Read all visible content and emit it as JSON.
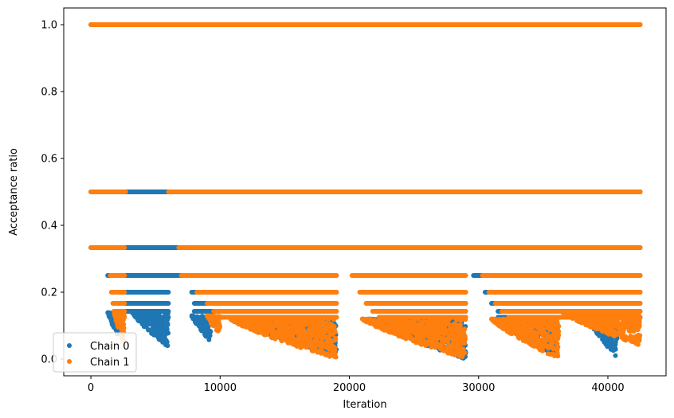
{
  "chart_data": {
    "type": "scatter",
    "xlabel": "Iteration",
    "ylabel": "Acceptance ratio",
    "xlim": [
      -2100,
      44500
    ],
    "ylim": [
      -0.05,
      1.05
    ],
    "x_ticks": [
      0,
      10000,
      20000,
      30000,
      40000
    ],
    "x_tick_labels": [
      "0",
      "10000",
      "20000",
      "30000",
      "40000"
    ],
    "y_ticks": [
      0.0,
      0.2,
      0.4,
      0.6,
      0.8,
      1.0
    ],
    "y_tick_labels": [
      "0.0",
      "0.2",
      "0.4",
      "0.6",
      "0.8",
      "1.0"
    ],
    "grid": false,
    "legend_position": "lower-left",
    "marker": "circle",
    "series": [
      {
        "name": "Chain 0",
        "color": "#1f77b4",
        "bands": [
          {
            "y": 1.0,
            "x_ranges": [
              [
                0,
                42500
              ]
            ]
          },
          {
            "y": 0.5,
            "x_ranges": [
              [
                0,
                42500
              ]
            ]
          },
          {
            "y": 0.3333,
            "x_ranges": [
              [
                0,
                42500
              ]
            ]
          },
          {
            "y": 0.25,
            "x_ranges": [
              [
                1300,
                19000
              ],
              [
                29600,
                42500
              ]
            ]
          },
          {
            "y": 0.2,
            "x_ranges": [
              [
                1600,
                6000
              ],
              [
                7800,
                19000
              ],
              [
                21500,
                29000
              ],
              [
                30500,
                42500
              ]
            ]
          },
          {
            "y": 0.1667,
            "x_ranges": [
              [
                1800,
                6000
              ],
              [
                8000,
                19000
              ],
              [
                22000,
                29000
              ],
              [
                31000,
                42500
              ]
            ]
          },
          {
            "y": 0.1429,
            "x_ranges": [
              [
                1800,
                6000
              ],
              [
                8000,
                19000
              ],
              [
                22000,
                29000
              ],
              [
                31500,
                42500
              ]
            ]
          },
          {
            "y": 0.125,
            "x_ranges": [
              [
                3500,
                6000
              ],
              [
                8500,
                19000
              ],
              [
                22500,
                29000
              ],
              [
                31500,
                42500
              ]
            ]
          }
        ],
        "clusters": [
          {
            "x": [
              1300,
              2400
            ],
            "y_min": 0.05,
            "y_max": 0.14
          },
          {
            "x": [
              3200,
              6000
            ],
            "y_min": 0.035,
            "y_max": 0.14
          },
          {
            "x": [
              7800,
              9300
            ],
            "y_min": 0.05,
            "y_max": 0.13
          },
          {
            "x": [
              11000,
              19000
            ],
            "y_min": 0.01,
            "y_max": 0.12
          },
          {
            "x": [
              21500,
              29000
            ],
            "y_min": 0.0,
            "y_max": 0.12
          },
          {
            "x": [
              31500,
              36000
            ],
            "y_min": 0.005,
            "y_max": 0.12
          },
          {
            "x": [
              38500,
              40700
            ],
            "y_min": 0.005,
            "y_max": 0.12
          }
        ]
      },
      {
        "name": "Chain 1",
        "color": "#ff7f0e",
        "bands": [
          {
            "y": 1.0,
            "x_ranges": [
              [
                0,
                42500
              ]
            ]
          },
          {
            "y": 0.5,
            "x_ranges": [
              [
                0,
                2700
              ],
              [
                6000,
                42500
              ]
            ]
          },
          {
            "y": 0.3333,
            "x_ranges": [
              [
                0,
                2600
              ],
              [
                6800,
                42500
              ]
            ]
          },
          {
            "y": 0.25,
            "x_ranges": [
              [
                1500,
                2600
              ],
              [
                7000,
                19000
              ],
              [
                20200,
                29000
              ],
              [
                30300,
                42500
              ]
            ]
          },
          {
            "y": 0.2,
            "x_ranges": [
              [
                1600,
                2600
              ],
              [
                8200,
                19000
              ],
              [
                20800,
                29000
              ],
              [
                30800,
                42500
              ]
            ]
          },
          {
            "y": 0.1667,
            "x_ranges": [
              [
                1700,
                2600
              ],
              [
                9000,
                19000
              ],
              [
                21300,
                29000
              ],
              [
                31300,
                42500
              ]
            ]
          },
          {
            "y": 0.1429,
            "x_ranges": [
              [
                1800,
                2600
              ],
              [
                9500,
                19000
              ],
              [
                21800,
                29000
              ],
              [
                31800,
                42500
              ]
            ]
          },
          {
            "y": 0.125,
            "x_ranges": [
              [
                1900,
                2600
              ],
              [
                10000,
                19000
              ],
              [
                22300,
                29000
              ],
              [
                32300,
                42500
              ]
            ]
          }
        ],
        "clusters": [
          {
            "x": [
              1800,
              2600
            ],
            "y_min": 0.04,
            "y_max": 0.14
          },
          {
            "x": [
              9000,
              10000
            ],
            "y_min": 0.07,
            "y_max": 0.13
          },
          {
            "x": [
              10800,
              19000
            ],
            "y_min": 0.0,
            "y_max": 0.12
          },
          {
            "x": [
              21000,
              29000
            ],
            "y_min": 0.0,
            "y_max": 0.12
          },
          {
            "x": [
              31000,
              36200
            ],
            "y_min": 0.0,
            "y_max": 0.12
          },
          {
            "x": [
              36500,
              42500
            ],
            "y_min": 0.04,
            "y_max": 0.14
          }
        ]
      }
    ]
  }
}
